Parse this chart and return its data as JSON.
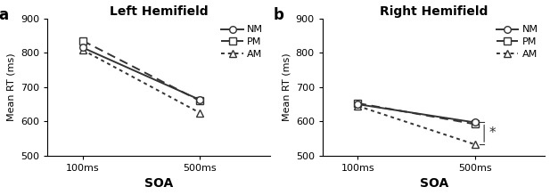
{
  "panel_a": {
    "title": "Left Hemifield",
    "label": "a",
    "NM": [
      815,
      663
    ],
    "PM": [
      835,
      660
    ],
    "AM": [
      808,
      625
    ],
    "ylim": [
      500,
      900
    ],
    "yticks": [
      500,
      600,
      700,
      800,
      900
    ],
    "xtick_labels": [
      "100ms",
      "500ms"
    ]
  },
  "panel_b": {
    "title": "Right Hemifield",
    "label": "b",
    "NM": [
      650,
      597
    ],
    "PM": [
      653,
      592
    ],
    "AM": [
      645,
      533
    ],
    "ylim": [
      500,
      900
    ],
    "yticks": [
      500,
      600,
      700,
      800,
      900
    ],
    "xtick_labels": [
      "100ms",
      "500ms"
    ]
  },
  "xlabel": "SOA",
  "ylabel": "Mean RT (ms)",
  "line_color": "#333333",
  "NM_linestyle": "solid",
  "PM_dashes": [
    5,
    3
  ],
  "AM_dashes": [
    2,
    2
  ],
  "NM_marker": "o",
  "PM_marker": "s",
  "AM_marker": "^",
  "linewidth": 1.4,
  "markersize": 5.5,
  "title_fontsize": 10,
  "label_fontsize": 12,
  "axis_fontsize": 8,
  "xlabel_fontsize": 10,
  "legend_fontsize": 8
}
